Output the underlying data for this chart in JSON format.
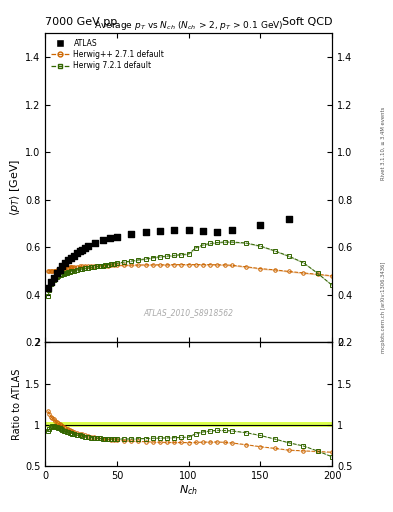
{
  "title_top": "7000 GeV pp",
  "title_right": "Soft QCD",
  "plot_title": "Average $p_T$ vs $N_{ch}$ ($N_{ch}$ > 2, $p_T$ > 0.1 GeV)",
  "ylabel_main": "$\\langle p_T \\rangle$ [GeV]",
  "ylabel_ratio": "Ratio to ATLAS",
  "xlabel": "$N_{ch}$",
  "ylim_main": [
    0.2,
    1.5
  ],
  "ylim_ratio": [
    0.5,
    2.0
  ],
  "xlim": [
    0,
    200
  ],
  "watermark": "ATLAS_2010_S8918562",
  "right_label": "mcplots.cern.ch [arXiv:1306.3436]",
  "right_label2": "Rivet 3.1.10, ≥ 3.4M events",
  "atlas_x": [
    2,
    4,
    6,
    8,
    10,
    12,
    14,
    16,
    18,
    20,
    22,
    24,
    26,
    28,
    30,
    35,
    40,
    45,
    50,
    60,
    70,
    80,
    90,
    100,
    110,
    120,
    130,
    150,
    170
  ],
  "atlas_y": [
    0.43,
    0.455,
    0.47,
    0.49,
    0.505,
    0.52,
    0.535,
    0.545,
    0.555,
    0.565,
    0.575,
    0.583,
    0.59,
    0.598,
    0.605,
    0.618,
    0.63,
    0.638,
    0.645,
    0.655,
    0.662,
    0.668,
    0.671,
    0.673,
    0.668,
    0.665,
    0.672,
    0.695,
    0.72
  ],
  "hpp_x": [
    2,
    3,
    4,
    5,
    6,
    7,
    8,
    9,
    10,
    11,
    12,
    13,
    14,
    15,
    16,
    17,
    18,
    19,
    20,
    22,
    24,
    26,
    28,
    30,
    32,
    34,
    36,
    38,
    40,
    42,
    44,
    46,
    48,
    50,
    55,
    60,
    65,
    70,
    75,
    80,
    85,
    90,
    95,
    100,
    105,
    110,
    115,
    120,
    125,
    130,
    140,
    150,
    160,
    170,
    180,
    190,
    200
  ],
  "hpp_y": [
    0.5,
    0.5,
    0.5,
    0.5,
    0.5,
    0.502,
    0.504,
    0.506,
    0.508,
    0.509,
    0.51,
    0.511,
    0.512,
    0.513,
    0.514,
    0.515,
    0.516,
    0.516,
    0.517,
    0.518,
    0.519,
    0.52,
    0.521,
    0.521,
    0.521,
    0.522,
    0.522,
    0.522,
    0.523,
    0.523,
    0.523,
    0.524,
    0.524,
    0.524,
    0.524,
    0.525,
    0.525,
    0.526,
    0.526,
    0.526,
    0.526,
    0.527,
    0.527,
    0.527,
    0.527,
    0.527,
    0.527,
    0.526,
    0.526,
    0.524,
    0.518,
    0.51,
    0.505,
    0.498,
    0.492,
    0.486,
    0.48
  ],
  "h7_x": [
    2,
    3,
    4,
    5,
    6,
    7,
    8,
    9,
    10,
    11,
    12,
    13,
    14,
    15,
    16,
    17,
    18,
    19,
    20,
    22,
    24,
    26,
    28,
    30,
    32,
    34,
    36,
    38,
    40,
    42,
    44,
    46,
    48,
    50,
    55,
    60,
    65,
    70,
    75,
    80,
    85,
    90,
    95,
    100,
    105,
    110,
    115,
    120,
    125,
    130,
    140,
    150,
    160,
    170,
    180,
    190,
    200
  ],
  "h7_y": [
    0.395,
    0.42,
    0.445,
    0.455,
    0.463,
    0.469,
    0.474,
    0.478,
    0.482,
    0.484,
    0.487,
    0.489,
    0.491,
    0.493,
    0.495,
    0.497,
    0.499,
    0.5,
    0.501,
    0.504,
    0.507,
    0.509,
    0.511,
    0.513,
    0.515,
    0.517,
    0.519,
    0.521,
    0.523,
    0.525,
    0.527,
    0.529,
    0.531,
    0.533,
    0.538,
    0.542,
    0.547,
    0.551,
    0.556,
    0.56,
    0.563,
    0.566,
    0.569,
    0.572,
    0.598,
    0.61,
    0.616,
    0.62,
    0.622,
    0.622,
    0.618,
    0.605,
    0.585,
    0.562,
    0.535,
    0.49,
    0.44
  ],
  "hpp_band_lo": [
    0.497,
    0.497,
    0.497,
    0.497,
    0.497,
    0.499,
    0.501,
    0.503,
    0.505,
    0.506,
    0.507,
    0.508,
    0.509,
    0.51,
    0.511,
    0.512,
    0.513,
    0.513,
    0.514,
    0.515,
    0.516,
    0.517,
    0.518,
    0.518,
    0.518,
    0.519,
    0.519,
    0.519,
    0.52,
    0.52,
    0.52,
    0.521,
    0.521,
    0.521,
    0.521,
    0.522,
    0.522,
    0.523,
    0.523,
    0.523,
    0.523,
    0.524,
    0.524,
    0.524,
    0.524,
    0.524,
    0.524,
    0.523,
    0.523,
    0.521,
    0.515,
    0.507,
    0.502,
    0.495,
    0.489,
    0.483,
    0.477
  ],
  "hpp_band_hi": [
    0.503,
    0.503,
    0.503,
    0.503,
    0.503,
    0.505,
    0.507,
    0.509,
    0.511,
    0.512,
    0.513,
    0.514,
    0.515,
    0.516,
    0.517,
    0.518,
    0.519,
    0.519,
    0.52,
    0.521,
    0.522,
    0.523,
    0.524,
    0.524,
    0.524,
    0.525,
    0.525,
    0.525,
    0.526,
    0.526,
    0.526,
    0.527,
    0.527,
    0.527,
    0.527,
    0.528,
    0.528,
    0.529,
    0.529,
    0.529,
    0.529,
    0.53,
    0.53,
    0.53,
    0.53,
    0.53,
    0.53,
    0.529,
    0.529,
    0.527,
    0.521,
    0.513,
    0.508,
    0.501,
    0.495,
    0.489,
    0.483
  ],
  "h7_band_lo": [
    0.392,
    0.417,
    0.442,
    0.452,
    0.46,
    0.466,
    0.471,
    0.475,
    0.479,
    0.481,
    0.484,
    0.486,
    0.488,
    0.49,
    0.492,
    0.494,
    0.496,
    0.497,
    0.498,
    0.501,
    0.504,
    0.506,
    0.508,
    0.51,
    0.512,
    0.514,
    0.516,
    0.518,
    0.52,
    0.522,
    0.524,
    0.526,
    0.528,
    0.53,
    0.535,
    0.539,
    0.544,
    0.548,
    0.553,
    0.557,
    0.56,
    0.563,
    0.566,
    0.569,
    0.595,
    0.607,
    0.613,
    0.617,
    0.619,
    0.619,
    0.615,
    0.602,
    0.582,
    0.559,
    0.532,
    0.487,
    0.437
  ],
  "h7_band_hi": [
    0.398,
    0.423,
    0.448,
    0.458,
    0.466,
    0.472,
    0.477,
    0.481,
    0.485,
    0.487,
    0.49,
    0.492,
    0.494,
    0.496,
    0.498,
    0.5,
    0.502,
    0.503,
    0.504,
    0.507,
    0.51,
    0.512,
    0.514,
    0.516,
    0.518,
    0.52,
    0.522,
    0.524,
    0.526,
    0.528,
    0.53,
    0.532,
    0.534,
    0.536,
    0.541,
    0.545,
    0.55,
    0.554,
    0.559,
    0.563,
    0.566,
    0.569,
    0.572,
    0.575,
    0.601,
    0.613,
    0.619,
    0.623,
    0.625,
    0.625,
    0.621,
    0.608,
    0.588,
    0.565,
    0.538,
    0.493,
    0.443
  ],
  "atlas_color": "#000000",
  "hpp_color": "#cc6600",
  "h7_color": "#336600",
  "atlas_legend": "ATLAS",
  "hpp_legend": "Herwig++ 2.7.1 default",
  "h7_legend": "Herwig 7.2.1 default"
}
